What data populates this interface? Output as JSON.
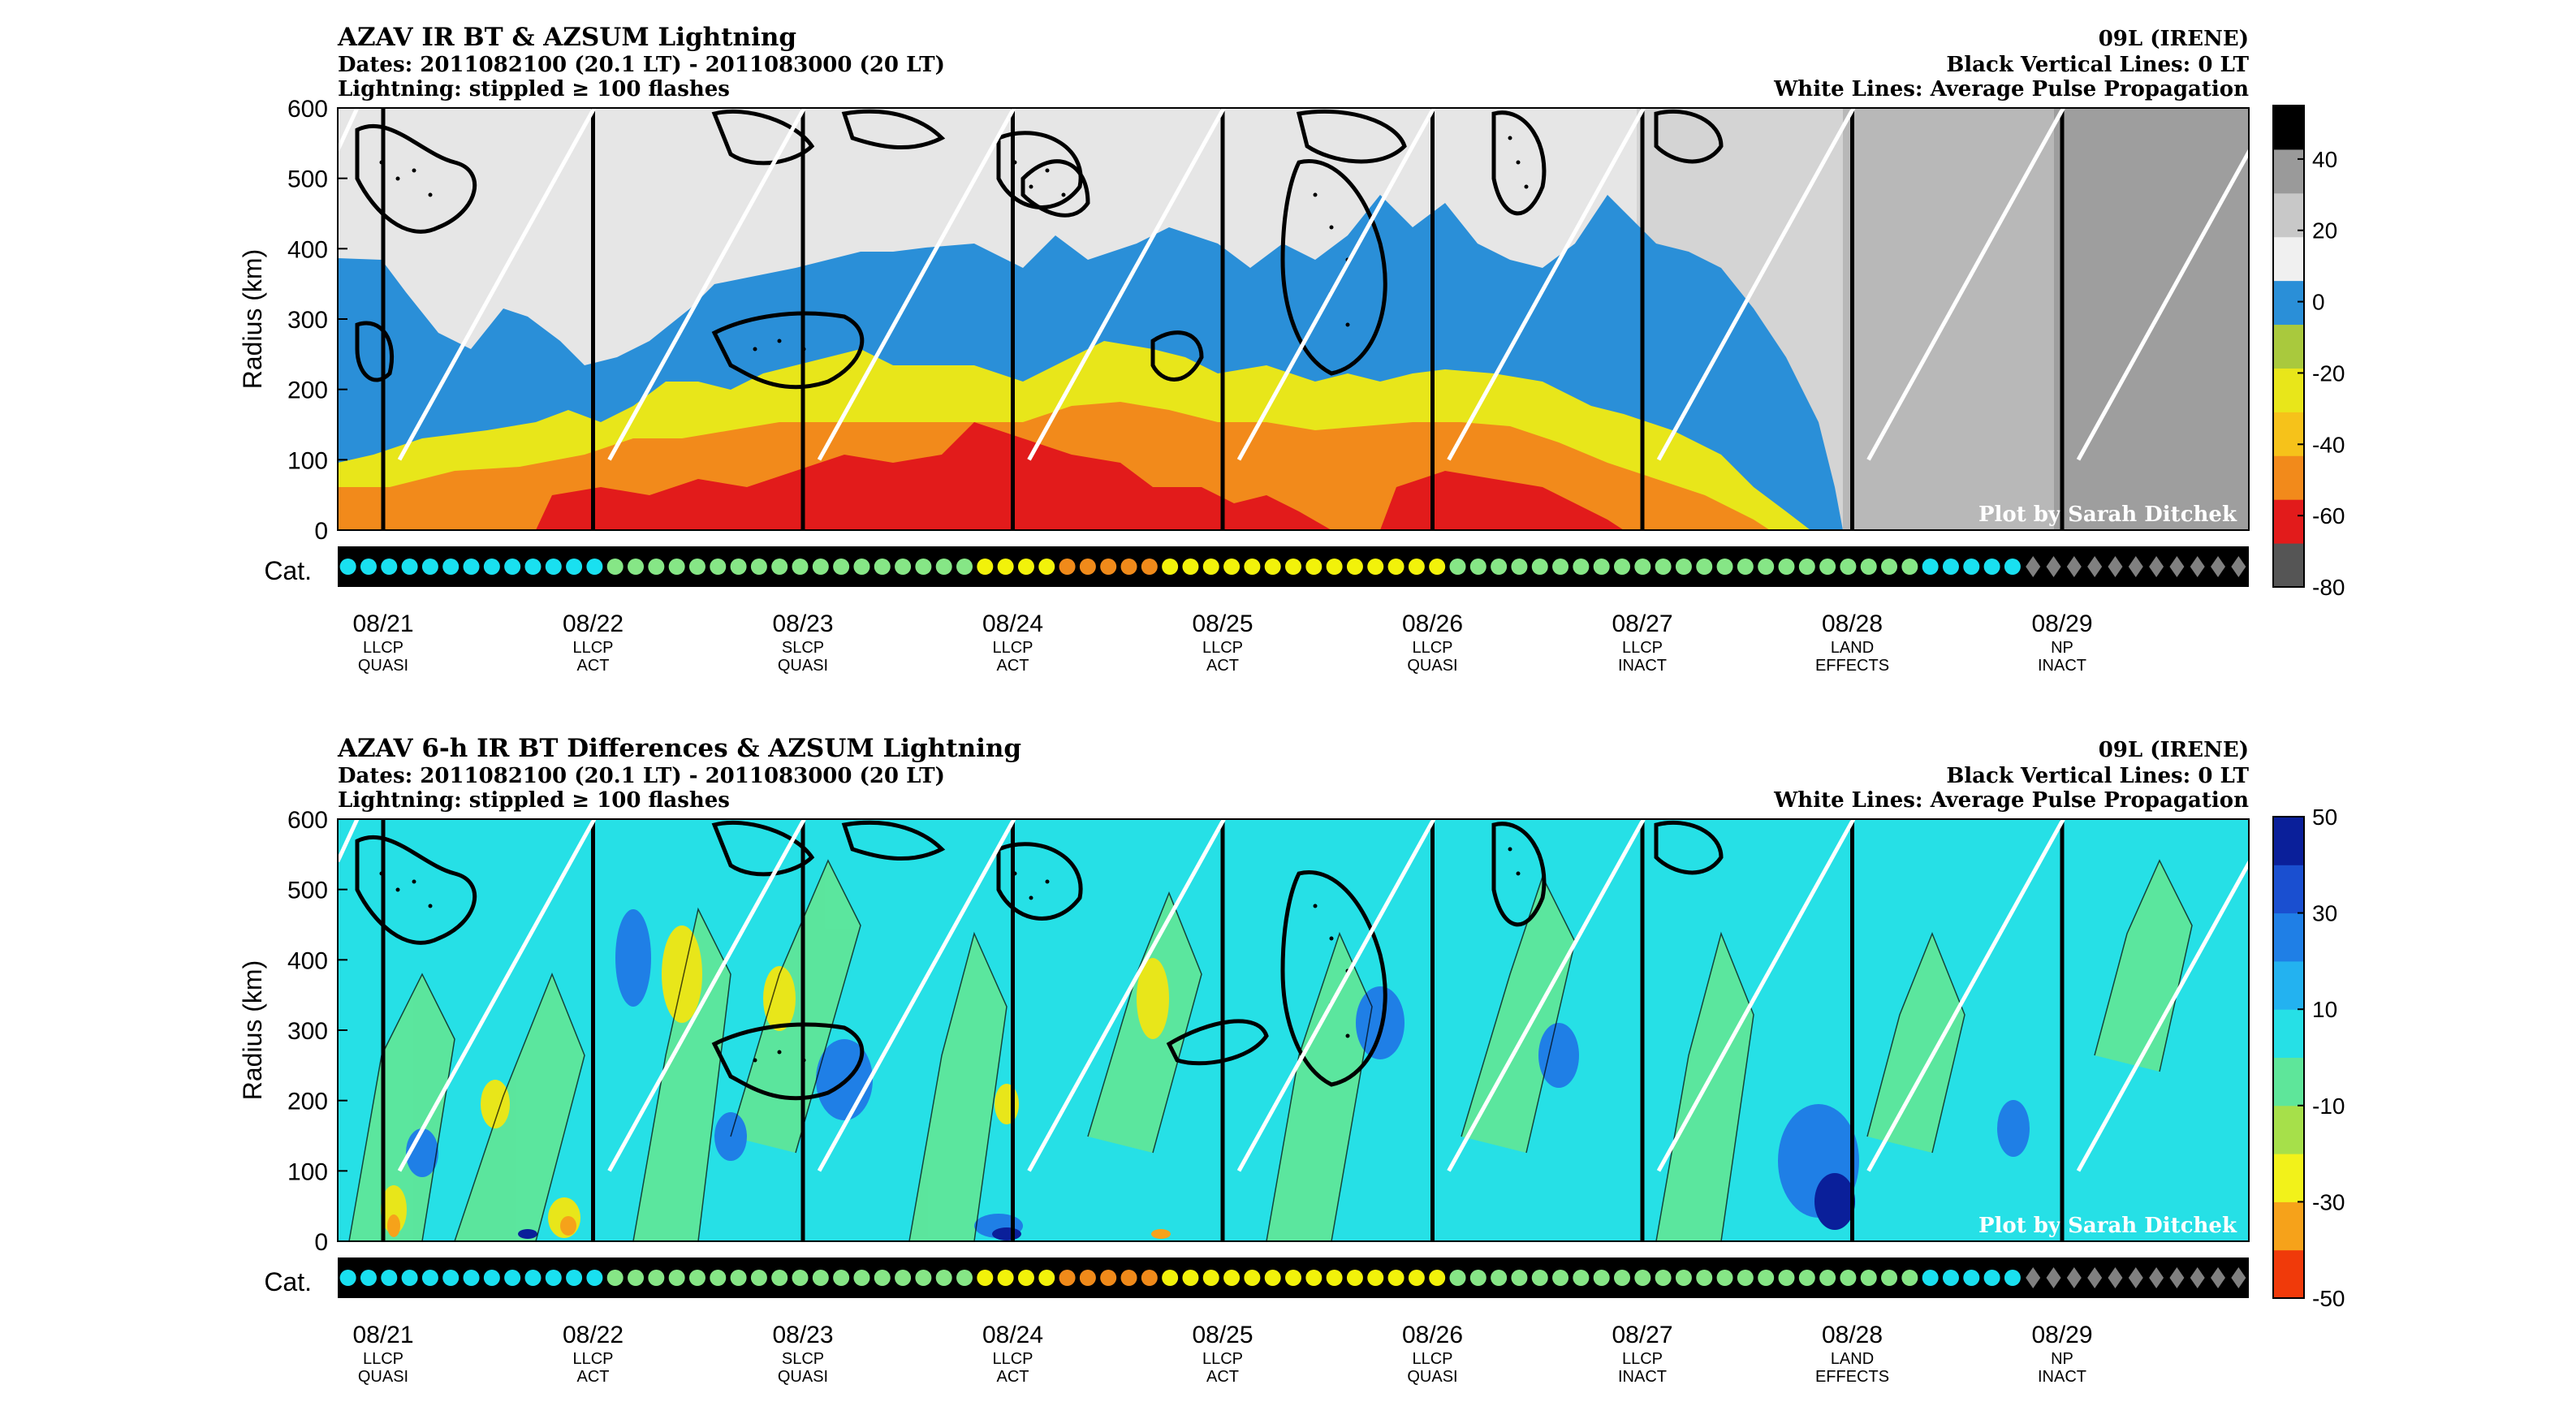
{
  "chart_data": [
    {
      "type": "heatmap",
      "title_lines": [
        "AZAV IR BT & AZSUM Lightning",
        "Dates: 2011082100 (20.1 LT) - 2011083000 (20 LT)",
        "Lightning: stippled ≥ 100 flashes"
      ],
      "right_lines": [
        "09L (IRENE)",
        "Black Vertical Lines: 0 LT",
        "White Lines: Average Pulse Propagation"
      ],
      "ylabel": "Radius (km)",
      "ylim": [
        0,
        600
      ],
      "yticks": [
        "0",
        "100",
        "200",
        "300",
        "400",
        "500",
        "600"
      ],
      "credit": "Plot by Sarah Ditchek",
      "cat_label": "Cat.",
      "colorbar_ticks": [
        "40",
        "20",
        "0",
        "-20",
        "-40",
        "-60",
        "-80"
      ],
      "colorbar_range": [
        -80,
        55
      ],
      "colors": [
        "#555555",
        "#e21b1b",
        "#f28a1b",
        "#f6c21a",
        "#e8e61a",
        "#a9c93d",
        "#2a8fd8",
        "#f0f0f0",
        "#c8c8c8",
        "#9a9a9a",
        "#000000"
      ],
      "vertical_line_days": [
        0,
        1,
        2,
        3,
        4,
        5,
        6,
        7,
        8
      ],
      "white_line_radius_range": [
        100,
        600
      ]
    },
    {
      "type": "heatmap",
      "title_lines": [
        "AZAV 6-h IR BT Differences & AZSUM Lightning",
        "Dates: 2011082100 (20.1 LT) - 2011083000 (20 LT)",
        "Lightning: stippled ≥ 100 flashes"
      ],
      "right_lines": [
        "09L (IRENE)",
        "Black Vertical Lines: 0 LT",
        "White Lines: Average Pulse Propagation"
      ],
      "ylabel": "Radius (km)",
      "ylim": [
        0,
        600
      ],
      "yticks": [
        "0",
        "100",
        "200",
        "300",
        "400",
        "500",
        "600"
      ],
      "credit": "Plot by Sarah Ditchek",
      "cat_label": "Cat.",
      "colorbar_ticks": [
        "50",
        "30",
        "10",
        "-10",
        "-30",
        "-50"
      ],
      "colorbar_range": [
        -50,
        50
      ],
      "colors": [
        "#f03a0a",
        "#f6a21a",
        "#f2f21a",
        "#a6e04a",
        "#5ee69a",
        "#26e0e6",
        "#23b2f0",
        "#1f7fe6",
        "#1a4fd0",
        "#0a1f9a"
      ],
      "vertical_line_days": [
        0,
        1,
        2,
        3,
        4,
        5,
        6,
        7,
        8
      ],
      "white_line_radius_range": [
        100,
        600
      ]
    }
  ],
  "x_axis": {
    "dates": [
      "08/21",
      "08/22",
      "08/23",
      "08/24",
      "08/25",
      "08/26",
      "08/27",
      "08/28",
      "08/29"
    ],
    "labels_line1": [
      "LLCP",
      "LLCP",
      "SLCP",
      "LLCP",
      "LLCP",
      "LLCP",
      "LLCP",
      "LAND",
      "NP"
    ],
    "labels_line2": [
      "QUASI",
      "ACT",
      "QUASI",
      "ACT",
      "ACT",
      "QUASI",
      "INACT",
      "EFFECTS",
      "INACT"
    ]
  },
  "category_markers": [
    "TS",
    "TS",
    "TS",
    "TS",
    "TS",
    "TS",
    "TS",
    "TS",
    "TS",
    "TS",
    "TS",
    "TS",
    "TS",
    "C1",
    "C1",
    "C1",
    "C1",
    "C1",
    "C1",
    "C1",
    "C1",
    "C1",
    "C1",
    "C1",
    "C1",
    "C1",
    "C1",
    "C1",
    "C1",
    "C1",
    "C1",
    "C2",
    "C2",
    "C2",
    "C2",
    "C3",
    "C3",
    "C3",
    "C3",
    "C3",
    "C2",
    "C2",
    "C2",
    "C2",
    "C2",
    "C2",
    "C2",
    "C2",
    "C2",
    "C2",
    "C2",
    "C2",
    "C2",
    "C2",
    "C1",
    "C1",
    "C1",
    "C1",
    "C1",
    "C1",
    "C1",
    "C1",
    "C1",
    "C1",
    "C1",
    "C1",
    "C1",
    "C1",
    "C1",
    "C1",
    "C1",
    "C1",
    "C1",
    "C1",
    "C1",
    "C1",
    "C1",
    "TS",
    "TS",
    "TS",
    "TS",
    "TS",
    "EX",
    "EX",
    "EX",
    "EX",
    "EX",
    "EX",
    "EX",
    "EX",
    "EX",
    "EX",
    "EX"
  ],
  "category_colors": {
    "TS": "#19e0f0",
    "C1": "#86e686",
    "C2": "#f2f20a",
    "C3": "#f08a1a",
    "EX": "#808080"
  }
}
